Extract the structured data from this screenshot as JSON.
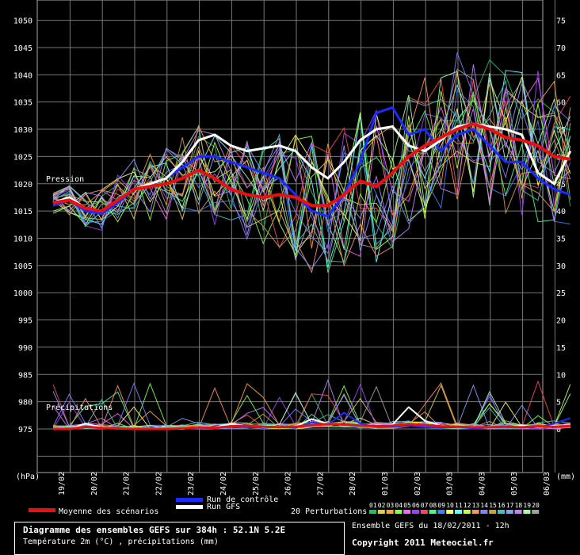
{
  "chart_data": {
    "type": "line",
    "title": "Diagramme des ensembles GEFS sur 384h : 52.1N 5.2E",
    "subtitle": "Température 2m (°C) , précipitations (mm)",
    "left_axis": {
      "unit": "(hPa)",
      "ylim": [
        970,
        1050
      ],
      "ticks": [
        975,
        980,
        985,
        990,
        995,
        1000,
        1005,
        1010,
        1015,
        1020,
        1025,
        1030,
        1035,
        1040,
        1045,
        1050
      ]
    },
    "right_axis": {
      "unit": "(mm)",
      "ylim": [
        -5,
        75
      ],
      "ticks": [
        0,
        5,
        10,
        15,
        20,
        25,
        30,
        35,
        40,
        45,
        50,
        55,
        60,
        65,
        70,
        75
      ]
    },
    "x_labels": [
      "19/02",
      "20/02",
      "21/02",
      "22/02",
      "23/02",
      "24/02",
      "25/02",
      "26/02",
      "27/02",
      "28/02",
      "01/03",
      "02/03",
      "03/03",
      "04/03",
      "05/03",
      "06/03"
    ],
    "x_range_days": [
      0,
      16
    ],
    "section_labels": {
      "pressure": "Pression",
      "precip": "Précipitations"
    },
    "grid": true,
    "series": [
      {
        "name": "Moyenne des scénarios",
        "color": "#e81010",
        "x": [
          0,
          0.5,
          1,
          1.5,
          2,
          2.5,
          3,
          3.5,
          4,
          4.5,
          5,
          5.5,
          6,
          6.5,
          7,
          7.5,
          8,
          8.5,
          9,
          9.5,
          10,
          10.5,
          11,
          11.5,
          12,
          12.5,
          13,
          13.5,
          14,
          14.5,
          15,
          15.5,
          16
        ],
        "pressure": [
          1016.5,
          1017,
          1015.5,
          1015,
          1017,
          1019,
          1019.5,
          1020,
          1021,
          1022.5,
          1021,
          1019,
          1018,
          1017.5,
          1018,
          1017.5,
          1016,
          1016,
          1018,
          1020.5,
          1019.5,
          1022,
          1025,
          1027,
          1028.5,
          1030,
          1031,
          1030,
          1028.5,
          1028,
          1027,
          1025,
          1024.5
        ],
        "precip": [
          0,
          0,
          0.4,
          0.2,
          0.1,
          0,
          0,
          0,
          0.1,
          0.3,
          0.2,
          0.5,
          0.6,
          0.4,
          0.3,
          0.4,
          0.7,
          0.9,
          0.8,
          0.6,
          0.5,
          0.6,
          0.9,
          0.7,
          0.5,
          0.4,
          0.3,
          0.3,
          0.4,
          0.3,
          0.5,
          0.4,
          0.5
        ]
      },
      {
        "name": "Run de contrôle",
        "color": "#1a2bff",
        "x": [
          0,
          0.5,
          1,
          1.5,
          2,
          2.5,
          3,
          3.5,
          4,
          4.5,
          5,
          5.5,
          6,
          6.5,
          7,
          7.5,
          8,
          8.5,
          9,
          9.5,
          10,
          10.5,
          11,
          11.5,
          12,
          12.5,
          13,
          13.5,
          14,
          14.5,
          15,
          15.5,
          16
        ],
        "pressure": [
          1016,
          1017,
          1015,
          1014.5,
          1016.5,
          1019,
          1020,
          1021,
          1023,
          1025,
          1025,
          1024,
          1023,
          1022,
          1021,
          1018,
          1015,
          1014,
          1018,
          1024,
          1033,
          1034,
          1029,
          1030,
          1026,
          1029,
          1030,
          1027,
          1024,
          1024,
          1021,
          1019,
          1018
        ],
        "precip": [
          0,
          0,
          0.3,
          0.1,
          0,
          0,
          0,
          0,
          0,
          0.2,
          0.1,
          0.5,
          0.3,
          0.2,
          0.3,
          0.2,
          1.2,
          0.8,
          3,
          1,
          0.3,
          0.4,
          0.6,
          0.3,
          0.2,
          0.3,
          0.1,
          0.2,
          0.3,
          0.4,
          0.2,
          1,
          2
        ]
      },
      {
        "name": "Run GFS",
        "color": "#ffffff",
        "x": [
          0,
          0.5,
          1,
          1.5,
          2,
          2.5,
          3,
          3.5,
          4,
          4.5,
          5,
          5.5,
          6,
          6.5,
          7,
          7.5,
          8,
          8.5,
          9,
          9.5,
          10,
          10.5,
          11,
          11.5,
          12,
          12.5,
          13,
          13.5,
          14,
          14.5,
          15,
          15.5,
          16
        ],
        "pressure": [
          1016.5,
          1017.5,
          1015.5,
          1015,
          1017,
          1019,
          1020,
          1021,
          1024,
          1028,
          1029,
          1027,
          1026,
          1026.5,
          1027,
          1026,
          1023,
          1021,
          1024,
          1028,
          1030,
          1030.5,
          1027,
          1026,
          1028,
          1030.5,
          1031,
          1030.5,
          1030,
          1029,
          1022,
          1020,
          1026
        ],
        "precip": [
          0,
          0,
          1,
          0.3,
          0.1,
          0,
          0,
          0,
          0,
          0.5,
          0.3,
          0.9,
          0.6,
          0.3,
          0.2,
          0.5,
          1.8,
          1,
          0.7,
          0.6,
          0.4,
          0.8,
          4,
          1.5,
          0.6,
          0.3,
          0.4,
          0.2,
          0.3,
          0.6,
          0.3,
          0.6,
          0.4
        ]
      }
    ],
    "perturbations": {
      "label": "20 Perturbations",
      "ids": [
        "01",
        "02",
        "03",
        "04",
        "05",
        "06",
        "07",
        "08",
        "09",
        "10",
        "11",
        "12",
        "13",
        "14",
        "15",
        "16",
        "17",
        "18",
        "19",
        "20"
      ],
      "colors": [
        "#20c060",
        "#e0d040",
        "#ffa030",
        "#80ff40",
        "#ff60ff",
        "#a040ff",
        "#ff4060",
        "#40ff80",
        "#4080ff",
        "#ffff60",
        "#60ffff",
        "#c0ff40",
        "#ff9060",
        "#8080ff",
        "#d0a030",
        "#40c0c0",
        "#80a0ff",
        "#c080ff",
        "#a0ffa0",
        "#a0a0a0"
      ]
    },
    "legend": {
      "mean_label": "Moyenne des scénarios",
      "control_label": "Run de contrôle",
      "gfs_label": "Run GFS",
      "position": "bottom"
    }
  },
  "footer": {
    "title": "Diagramme des ensembles GEFS sur 384h : 52.1N 5.2E",
    "subtitle": "Température 2m (°C) , précipitations (mm)",
    "ensemble_run": "Ensemble GEFS du 18/02/2011 - 12h",
    "copyright": "Copyright 2011 Meteociel.fr"
  }
}
